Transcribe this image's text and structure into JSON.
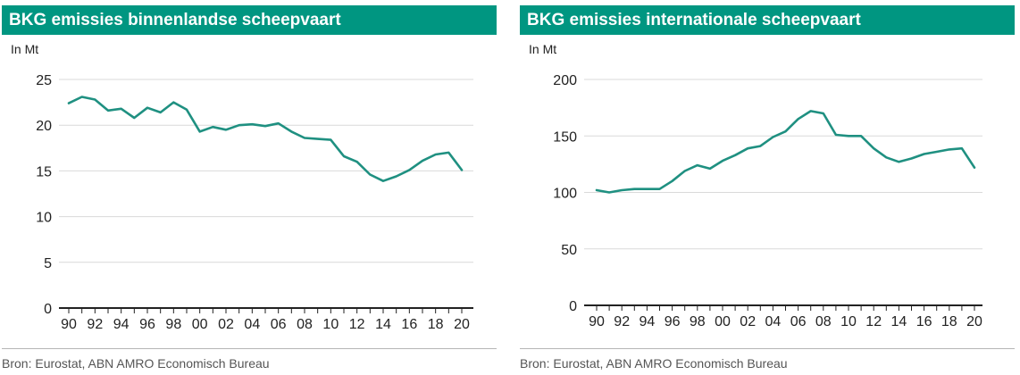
{
  "charts": [
    {
      "title": "BKG emissies binnenlandse scheepvaart",
      "unit_label": "In Mt",
      "source": "Bron: Eurostat, ABN AMRO Economisch Bureau"
    },
    {
      "title": "BKG emissies internationale scheepvaart",
      "unit_label": "In Mt",
      "source": "Bron: Eurostat, ABN AMRO Economisch Bureau"
    }
  ],
  "colors": {
    "title_bar": "#009681",
    "line": "#1f9081",
    "grid": "#d9d9d9",
    "axis": "#222222"
  },
  "chart_data": [
    {
      "type": "line",
      "title": "BKG emissies binnenlandse scheepvaart",
      "ylabel": "In Mt",
      "x": [
        1990,
        1991,
        1992,
        1993,
        1994,
        1995,
        1996,
        1997,
        1998,
        1999,
        2000,
        2001,
        2002,
        2003,
        2004,
        2005,
        2006,
        2007,
        2008,
        2009,
        2010,
        2011,
        2012,
        2013,
        2014,
        2015,
        2016,
        2017,
        2018,
        2019,
        2020
      ],
      "x_tick_labels": [
        "90",
        "92",
        "94",
        "96",
        "98",
        "00",
        "02",
        "04",
        "06",
        "08",
        "10",
        "12",
        "14",
        "16",
        "18",
        "20"
      ],
      "y_ticks": [
        0,
        5,
        10,
        15,
        20,
        25
      ],
      "ylim": [
        0,
        25
      ],
      "grid": true,
      "series": [
        {
          "values": [
            22.4,
            23.1,
            22.8,
            21.6,
            21.8,
            20.8,
            21.9,
            21.4,
            22.5,
            21.7,
            19.3,
            19.8,
            19.5,
            20.0,
            20.1,
            19.9,
            20.2,
            19.3,
            18.6,
            18.5,
            18.4,
            16.6,
            16.0,
            14.6,
            13.9,
            14.4,
            15.1,
            16.1,
            16.8,
            17.0,
            15.1
          ]
        }
      ]
    },
    {
      "type": "line",
      "title": "BKG emissies internationale scheepvaart",
      "ylabel": "In Mt",
      "x": [
        1990,
        1991,
        1992,
        1993,
        1994,
        1995,
        1996,
        1997,
        1998,
        1999,
        2000,
        2001,
        2002,
        2003,
        2004,
        2005,
        2006,
        2007,
        2008,
        2009,
        2010,
        2011,
        2012,
        2013,
        2014,
        2015,
        2016,
        2017,
        2018,
        2019,
        2020
      ],
      "x_tick_labels": [
        "90",
        "92",
        "94",
        "96",
        "98",
        "00",
        "02",
        "04",
        "06",
        "08",
        "10",
        "12",
        "14",
        "16",
        "18",
        "20"
      ],
      "y_ticks": [
        0,
        50,
        100,
        150,
        200
      ],
      "ylim": [
        0,
        200
      ],
      "grid": true,
      "series": [
        {
          "values": [
            102,
            100,
            102,
            103,
            103,
            103,
            110,
            119,
            124,
            121,
            128,
            133,
            139,
            141,
            149,
            154,
            165,
            172,
            170,
            151,
            150,
            150,
            139,
            131,
            127,
            130,
            134,
            136,
            138,
            139,
            122
          ]
        }
      ]
    }
  ]
}
